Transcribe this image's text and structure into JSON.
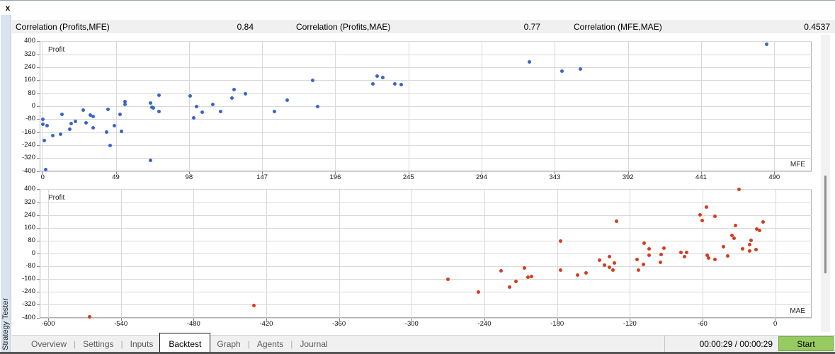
{
  "window": {
    "close_label": "x",
    "panel_title": "Strategy Tester"
  },
  "header": {
    "items": [
      {
        "label": "Correlation (Profits,MFE)",
        "value": "0.84"
      },
      {
        "label": "Correlation (Profits,MAE)",
        "value": "0.77"
      },
      {
        "label": "Correlation (MFE,MAE)",
        "value": "0.4537"
      }
    ]
  },
  "chart_data": [
    {
      "type": "scatter",
      "title": "",
      "series_label": "Profit",
      "axis_label": "MFE",
      "point_color": "#3a64c8",
      "grid": true,
      "legend": "none",
      "xlim": [
        -2,
        515
      ],
      "ylim": [
        -402,
        402
      ],
      "x_ticks": [
        0,
        49,
        98,
        147,
        196,
        245,
        294,
        343,
        392,
        441,
        490
      ],
      "y_ticks": [
        400,
        320,
        240,
        160,
        80,
        0,
        -80,
        -160,
        -240,
        -320,
        -400
      ],
      "points": [
        [
          0,
          -80
        ],
        [
          0,
          -110
        ],
        [
          1,
          -210
        ],
        [
          2,
          -390
        ],
        [
          3,
          -120
        ],
        [
          7,
          -180
        ],
        [
          12,
          -172
        ],
        [
          13,
          -50
        ],
        [
          18,
          -142
        ],
        [
          19,
          -106
        ],
        [
          22,
          -94
        ],
        [
          27,
          -24
        ],
        [
          29,
          -102
        ],
        [
          32,
          -55
        ],
        [
          34,
          -63
        ],
        [
          34,
          -133
        ],
        [
          43,
          -158
        ],
        [
          44,
          -20
        ],
        [
          45,
          -243
        ],
        [
          48,
          -120
        ],
        [
          52,
          -50
        ],
        [
          53,
          -155
        ],
        [
          55,
          28
        ],
        [
          55,
          12
        ],
        [
          72,
          -335
        ],
        [
          72,
          20
        ],
        [
          73,
          -5
        ],
        [
          74,
          -12
        ],
        [
          78,
          68
        ],
        [
          78,
          -32
        ],
        [
          99,
          64
        ],
        [
          101,
          -72
        ],
        [
          103,
          -2
        ],
        [
          107,
          -38
        ],
        [
          114,
          10
        ],
        [
          119,
          -33
        ],
        [
          127,
          50
        ],
        [
          128,
          102
        ],
        [
          136,
          77
        ],
        [
          155,
          -33
        ],
        [
          164,
          37
        ],
        [
          181,
          160
        ],
        [
          184,
          -3
        ],
        [
          221,
          138
        ],
        [
          224,
          185
        ],
        [
          228,
          177
        ],
        [
          236,
          138
        ],
        [
          240,
          133
        ],
        [
          326,
          272
        ],
        [
          348,
          216
        ],
        [
          360,
          228
        ],
        [
          485,
          383
        ]
      ]
    },
    {
      "type": "scatter",
      "title": "",
      "series_label": "Profit",
      "axis_label": "MAE",
      "point_color": "#d63c1d",
      "grid": true,
      "legend": "none",
      "xlim": [
        -607,
        30
      ],
      "ylim": [
        -402,
        402
      ],
      "x_ticks": [
        -600,
        -540,
        -480,
        -420,
        -360,
        -300,
        -240,
        -180,
        -120,
        -60,
        0
      ],
      "y_ticks": [
        400,
        320,
        240,
        160,
        80,
        0,
        -80,
        -160,
        -240,
        -320,
        -400
      ],
      "points": [
        [
          -566,
          -395
        ],
        [
          -430,
          -325
        ],
        [
          -270,
          -163
        ],
        [
          -245,
          -240
        ],
        [
          -226,
          -110
        ],
        [
          -219,
          -212
        ],
        [
          -214,
          -176
        ],
        [
          -207,
          -92
        ],
        [
          -204,
          -150
        ],
        [
          -201,
          -145
        ],
        [
          -177,
          77
        ],
        [
          -177,
          -103
        ],
        [
          -163,
          -133
        ],
        [
          -156,
          -122
        ],
        [
          -145,
          -44
        ],
        [
          -141,
          -74
        ],
        [
          -137,
          -21
        ],
        [
          -137,
          -84
        ],
        [
          -134,
          -104
        ],
        [
          -133,
          -60
        ],
        [
          -131,
          200
        ],
        [
          -114,
          -39
        ],
        [
          -113,
          -105
        ],
        [
          -109,
          -70
        ],
        [
          -108,
          64
        ],
        [
          -104,
          28
        ],
        [
          -104,
          -10
        ],
        [
          -95,
          -56
        ],
        [
          -94,
          -8
        ],
        [
          -92,
          33
        ],
        [
          -78,
          6
        ],
        [
          -75,
          -21
        ],
        [
          -73,
          6
        ],
        [
          -62,
          241
        ],
        [
          -60,
          206
        ],
        [
          -57,
          290
        ],
        [
          -56,
          -12
        ],
        [
          -55,
          -30
        ],
        [
          -50,
          -39
        ],
        [
          -50,
          233
        ],
        [
          -43,
          41
        ],
        [
          -39,
          -16
        ],
        [
          -36,
          112
        ],
        [
          -34,
          95
        ],
        [
          -33,
          175
        ],
        [
          -30,
          400
        ],
        [
          -27,
          28
        ],
        [
          -21,
          55
        ],
        [
          -21,
          15
        ],
        [
          -20,
          81
        ],
        [
          -16,
          24
        ],
        [
          -15,
          152
        ],
        [
          -13,
          143
        ],
        [
          -10,
          197
        ]
      ]
    }
  ],
  "tabs": {
    "items": [
      {
        "label": "Overview",
        "active": false
      },
      {
        "label": "Settings",
        "active": false
      },
      {
        "label": "Inputs",
        "active": false
      },
      {
        "label": "Backtest",
        "active": true
      },
      {
        "label": "Graph",
        "active": false
      },
      {
        "label": "Agents",
        "active": false
      },
      {
        "label": "Journal",
        "active": false
      }
    ]
  },
  "status": {
    "time": "00:00:29 / 00:00:29",
    "start_label": "Start"
  },
  "colors": {
    "mfe_points": "#3a64c8",
    "mae_points": "#d63c1d",
    "header_bg": "#f0f0f0",
    "strip_bg": "#dae4f0",
    "grid": "#d9d9d9",
    "start_button_bg": "#98ca62",
    "start_button_border": "#6aa13f"
  }
}
